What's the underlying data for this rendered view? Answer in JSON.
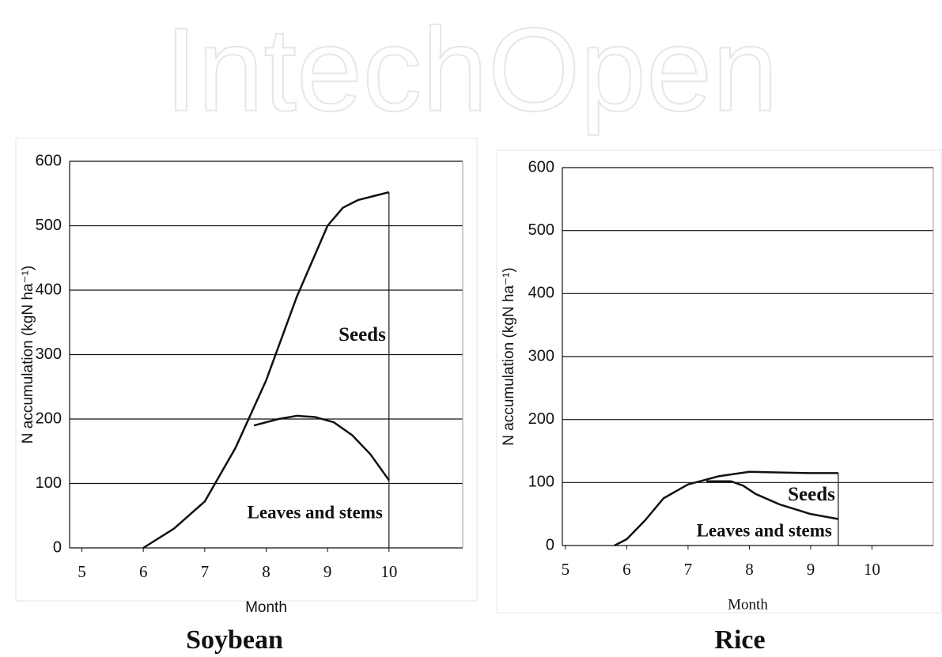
{
  "watermark": "IntechOpen",
  "chart_data": [
    {
      "type": "line",
      "title": "Soybean",
      "xlabel": "Month",
      "ylabel": "N accumulation (kgN ha⁻¹)",
      "xlim": [
        4.8,
        11.2
      ],
      "xticks": [
        5,
        6,
        7,
        8,
        9,
        10
      ],
      "ylim": [
        0,
        600
      ],
      "yticks": [
        0,
        100,
        200,
        300,
        400,
        500,
        600
      ],
      "grid": true,
      "series": [
        {
          "name": "Seeds",
          "color": "#111111",
          "x": [
            6,
            6.5,
            7,
            7.5,
            8,
            8.5,
            9,
            9.25,
            9.5,
            9.75,
            10
          ],
          "values": [
            0,
            30,
            72,
            155,
            260,
            390,
            500,
            528,
            540,
            546,
            552
          ]
        },
        {
          "name": "Leaves and stems",
          "color": "#111111",
          "x": [
            7.8,
            8.2,
            8.5,
            8.8,
            9.1,
            9.4,
            9.7,
            10
          ],
          "values": [
            190,
            200,
            205,
            203,
            195,
            175,
            145,
            105
          ]
        }
      ]
    },
    {
      "type": "line",
      "title": "Rice",
      "xlabel": "Month",
      "ylabel": "N accumulation (kgN ha⁻¹)",
      "xlim": [
        4.95,
        11
      ],
      "xticks": [
        5,
        6,
        7,
        8,
        9,
        10
      ],
      "ylim": [
        0,
        600
      ],
      "yticks": [
        0,
        100,
        200,
        300,
        400,
        500,
        600
      ],
      "grid": true,
      "series": [
        {
          "name": "Seeds",
          "color": "#111111",
          "x": [
            5.8,
            6,
            6.3,
            6.6,
            7,
            7.5,
            8,
            8.5,
            9,
            9.45
          ],
          "values": [
            0,
            10,
            40,
            75,
            97,
            110,
            117,
            116,
            115,
            115
          ]
        },
        {
          "name": "Leaves and stems",
          "color": "#111111",
          "x": [
            7.3,
            7.7,
            7.9,
            8.1,
            8.5,
            9,
            9.45
          ],
          "values": [
            102,
            102,
            95,
            82,
            65,
            50,
            42
          ]
        }
      ]
    }
  ]
}
